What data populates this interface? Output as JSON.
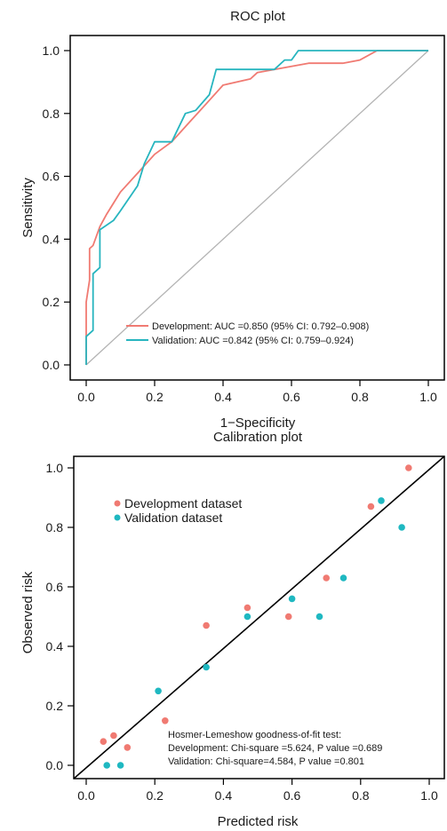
{
  "chart_data": [
    {
      "type": "line",
      "title": "ROC plot",
      "xlabel": "1−Specificity",
      "ylabel": "Sensitivity",
      "xlim": [
        0,
        1
      ],
      "ylim": [
        0,
        1
      ],
      "xticks": [
        "0.0",
        "0.2",
        "0.4",
        "0.6",
        "0.8",
        "1.0"
      ],
      "yticks": [
        "0.0",
        "0.2",
        "0.4",
        "0.6",
        "0.8",
        "1.0"
      ],
      "legend_position": "bottom-right",
      "reference_line": {
        "type": "diagonal",
        "color": "#b3b3b3"
      },
      "series": [
        {
          "name": "Development: AUC =0.850 (95% CI: 0.792–0.908)",
          "color": "#f07a72",
          "x": [
            0,
            0,
            0.01,
            0.01,
            0.02,
            0.04,
            0.06,
            0.1,
            0.15,
            0.2,
            0.25,
            0.3,
            0.35,
            0.4,
            0.48,
            0.5,
            0.55,
            0.6,
            0.65,
            0.75,
            0.8,
            0.85,
            1.0
          ],
          "y": [
            0,
            0.2,
            0.27,
            0.37,
            0.38,
            0.44,
            0.48,
            0.55,
            0.61,
            0.67,
            0.71,
            0.77,
            0.83,
            0.89,
            0.91,
            0.93,
            0.94,
            0.95,
            0.96,
            0.96,
            0.97,
            1.0,
            1.0
          ]
        },
        {
          "name": "Validation: AUC =0.842 (95% CI: 0.759–0.924)",
          "color": "#27b5bf",
          "x": [
            0,
            0,
            0.02,
            0.02,
            0.04,
            0.04,
            0.08,
            0.1,
            0.15,
            0.17,
            0.2,
            0.25,
            0.29,
            0.32,
            0.36,
            0.38,
            0.5,
            0.55,
            0.58,
            0.6,
            0.62,
            0.7,
            1.0
          ],
          "y": [
            0,
            0.09,
            0.11,
            0.29,
            0.31,
            0.43,
            0.46,
            0.49,
            0.57,
            0.64,
            0.71,
            0.71,
            0.8,
            0.81,
            0.86,
            0.94,
            0.94,
            0.94,
            0.97,
            0.97,
            1.0,
            1.0,
            1.0
          ]
        }
      ]
    },
    {
      "type": "scatter",
      "title": "Calibration plot",
      "xlabel": "Predicted risk",
      "ylabel": "Observed risk",
      "xlim": [
        0,
        1
      ],
      "ylim": [
        0,
        1
      ],
      "xticks": [
        "0.0",
        "0.2",
        "0.4",
        "0.6",
        "0.8",
        "1.0"
      ],
      "yticks": [
        "0.0",
        "0.2",
        "0.4",
        "0.6",
        "0.8",
        "1.0"
      ],
      "legend_position": "top-left",
      "reference_line": {
        "type": "diagonal",
        "color": "#000000"
      },
      "annotation": [
        "Hosmer-Lemeshow goodness-of-fit test:",
        "Development: Chi-square =5.624, P value =0.689",
        "Validation: Chi-square=4.584, P value =0.801"
      ],
      "series": [
        {
          "name": "Development dataset",
          "color": "#f07a72",
          "x": [
            0.05,
            0.08,
            0.12,
            0.23,
            0.35,
            0.47,
            0.59,
            0.7,
            0.83,
            0.94
          ],
          "y": [
            0.08,
            0.1,
            0.06,
            0.15,
            0.47,
            0.53,
            0.5,
            0.63,
            0.87,
            1.0
          ]
        },
        {
          "name": "Validation dataset",
          "color": "#1fb8c1",
          "x": [
            0.06,
            0.1,
            0.21,
            0.35,
            0.47,
            0.6,
            0.68,
            0.75,
            0.86,
            0.92
          ],
          "y": [
            0.0,
            0.0,
            0.25,
            0.33,
            0.5,
            0.56,
            0.5,
            0.63,
            0.89,
            0.8
          ]
        }
      ]
    }
  ]
}
